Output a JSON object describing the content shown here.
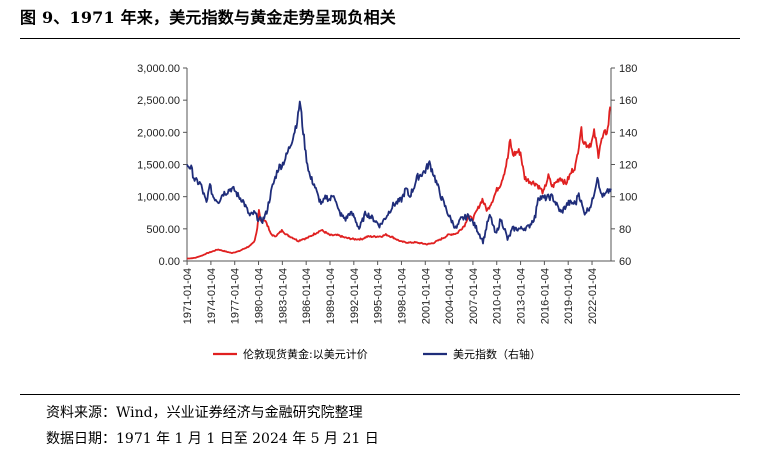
{
  "title": "图 9、1971 年来，美元指数与黄金走势呈现负相关",
  "footer": {
    "source": "资料来源：Wind，兴业证券经济与金融研究院整理",
    "date": "数据日期：1971 年 1 月 1 日至 2024 年 5 月 21 日"
  },
  "chart_data": {
    "type": "line",
    "x_ticks": [
      "1971-01-04",
      "1974-01-04",
      "1977-01-04",
      "1980-01-04",
      "1983-01-04",
      "1986-01-04",
      "1989-01-04",
      "1992-01-04",
      "1995-01-04",
      "1998-01-04",
      "2001-01-04",
      "2004-01-04",
      "2007-01-04",
      "2010-01-04",
      "2013-01-04",
      "2016-01-04",
      "2019-01-04",
      "2022-01-04"
    ],
    "xlim": [
      1971.0,
      2024.4
    ],
    "left_axis": {
      "ylim": [
        0,
        3000
      ],
      "ticks": [
        "0.00",
        "500.00",
        "1,000.00",
        "1,500.00",
        "2,000.00",
        "2,500.00",
        "3,000.00"
      ]
    },
    "right_axis": {
      "ylim": [
        60,
        180
      ],
      "ticks": [
        "60",
        "80",
        "100",
        "120",
        "140",
        "160",
        "180"
      ]
    },
    "grid": false,
    "legend_position": "bottom",
    "series": [
      {
        "name": "伦敦现货黄金:以美元计价",
        "axis": "left",
        "color": "#e02020",
        "x": [
          1971.0,
          1972.0,
          1973.0,
          1973.5,
          1974.0,
          1974.9,
          1975.5,
          1976.6,
          1977.5,
          1978.5,
          1979.0,
          1979.5,
          1979.9,
          1980.05,
          1980.3,
          1980.7,
          1981.0,
          1981.5,
          1982.0,
          1982.5,
          1983.0,
          1983.5,
          1984.0,
          1984.5,
          1985.0,
          1985.5,
          1986.0,
          1986.5,
          1987.0,
          1987.9,
          1988.5,
          1989.0,
          1990.0,
          1991.0,
          1992.0,
          1993.0,
          1993.7,
          1994.5,
          1995.5,
          1996.1,
          1996.9,
          1997.5,
          1998.0,
          1999.0,
          1999.7,
          2000.5,
          2001.3,
          2002.0,
          2003.0,
          2004.0,
          2005.0,
          2006.0,
          2006.4,
          2007.0,
          2008.2,
          2008.8,
          2009.5,
          2010.0,
          2010.5,
          2011.0,
          2011.4,
          2011.7,
          2012.0,
          2012.7,
          2013.0,
          2013.5,
          2014.0,
          2015.0,
          2015.9,
          2016.5,
          2017.0,
          2018.0,
          2018.7,
          2019.5,
          2020.0,
          2020.6,
          2021.0,
          2021.5,
          2022.0,
          2022.3,
          2022.8,
          2023.0,
          2023.5,
          2024.0,
          2024.3
        ],
        "values": [
          37,
          48,
          90,
          120,
          140,
          180,
          160,
          125,
          150,
          210,
          240,
          300,
          550,
          820,
          600,
          650,
          600,
          430,
          380,
          420,
          480,
          410,
          380,
          350,
          310,
          340,
          350,
          380,
          420,
          480,
          440,
          400,
          400,
          360,
          340,
          340,
          380,
          380,
          385,
          410,
          370,
          330,
          300,
          285,
          290,
          275,
          260,
          280,
          340,
          410,
          430,
          560,
          700,
          650,
          960,
          780,
          950,
          1100,
          1200,
          1400,
          1600,
          1880,
          1650,
          1700,
          1690,
          1300,
          1250,
          1200,
          1060,
          1320,
          1150,
          1300,
          1200,
          1400,
          1500,
          2050,
          1850,
          1800,
          1850,
          2000,
          1650,
          1800,
          1950,
          2050,
          2400
        ]
      },
      {
        "name": "美元指数（右轴）",
        "axis": "right",
        "color": "#1f2d7a",
        "x": [
          1971.0,
          1971.5,
          1972.0,
          1972.7,
          1973.5,
          1973.8,
          1974.3,
          1975.0,
          1975.5,
          1976.0,
          1976.5,
          1977.0,
          1977.5,
          1978.0,
          1978.9,
          1979.5,
          1980.0,
          1980.5,
          1981.0,
          1981.7,
          1982.5,
          1983.0,
          1983.5,
          1984.0,
          1984.5,
          1985.0,
          1985.2,
          1985.6,
          1986.0,
          1986.5,
          1987.0,
          1987.5,
          1988.0,
          1988.5,
          1989.0,
          1989.5,
          1990.0,
          1990.5,
          1991.0,
          1991.5,
          1992.0,
          1992.7,
          1993.5,
          1994.5,
          1995.3,
          1996.0,
          1997.0,
          1998.0,
          1998.6,
          1999.0,
          1999.5,
          2000.0,
          2001.0,
          2001.5,
          2002.0,
          2003.0,
          2004.0,
          2004.9,
          2005.5,
          2006.5,
          2007.5,
          2008.3,
          2008.9,
          2009.2,
          2009.9,
          2010.5,
          2011.0,
          2011.4,
          2012.0,
          2013.0,
          2014.0,
          2014.9,
          2015.2,
          2016.0,
          2017.0,
          2018.1,
          2019.0,
          2020.0,
          2020.3,
          2021.0,
          2021.5,
          2022.0,
          2022.75,
          2023.0,
          2023.5,
          2024.0,
          2024.4
        ],
        "values": [
          120,
          118,
          110,
          108,
          95,
          108,
          100,
          97,
          102,
          103,
          105,
          104,
          100,
          98,
          88,
          90,
          86,
          85,
          90,
          105,
          118,
          120,
          125,
          132,
          140,
          150,
          160,
          142,
          125,
          112,
          108,
          100,
          95,
          100,
          98,
          102,
          92,
          88,
          86,
          90,
          88,
          80,
          90,
          86,
          82,
          87,
          95,
          98,
          105,
          100,
          105,
          112,
          116,
          121,
          115,
          100,
          88,
          80,
          86,
          88,
          80,
          72,
          85,
          88,
          76,
          86,
          80,
          73,
          80,
          80,
          81,
          88,
          100,
          99,
          100,
          90,
          96,
          96,
          103,
          90,
          92,
          96,
          114,
          103,
          100,
          103,
          105
        ]
      }
    ]
  }
}
